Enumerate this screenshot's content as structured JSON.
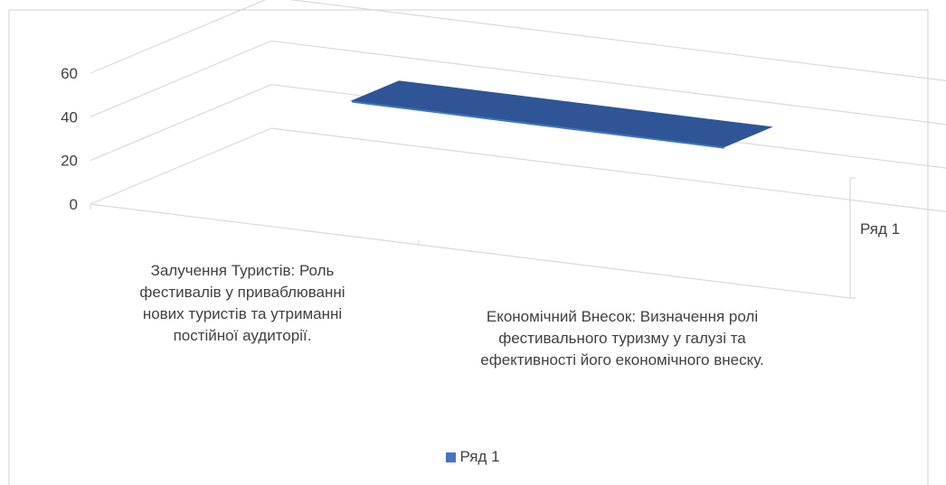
{
  "chart_data": {
    "type": "area",
    "three_d": true,
    "categories": [
      "Залучення Туристів: Роль фестивалів у приваблюванні нових туристів та утриманні постійної аудиторії.",
      "Економічний Внесок: Визначення ролі фестивального туризму у галузі та ефективності його економічного внеску."
    ],
    "series": [
      {
        "name": "Ряд 1",
        "values": [
          50,
          50
        ],
        "color": "#4472c4"
      }
    ],
    "series_axis_label": "Ряд 1",
    "ylim": [
      0,
      60
    ],
    "yticks": [
      "0",
      "20",
      "40",
      "60"
    ],
    "grid": true,
    "legend": {
      "position": "bottom",
      "label": "Ряд 1"
    }
  }
}
